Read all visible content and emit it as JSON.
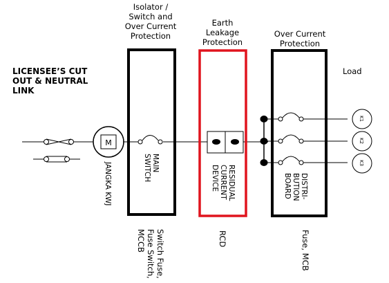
{
  "labels": {
    "licensee": [
      "LICENSEE’S CUT",
      "OUT & NEUTRAL",
      "LINK"
    ],
    "isolator": [
      "Isolator /",
      "Switch and",
      "Over Current",
      "Protection"
    ],
    "earth_leakage": [
      "Earth",
      "Leakage",
      "Protection"
    ],
    "over_current": [
      "Over Current",
      "Protection"
    ],
    "load": "Load"
  },
  "meter": {
    "symbol": "M",
    "label": "JANGKA KWJ"
  },
  "main_switch": [
    "MAIN",
    "SWITCH"
  ],
  "rcd_block": [
    "RESIDUAL",
    "CURRENT",
    "DEVICE"
  ],
  "distribution_board": [
    "DISTRI-",
    "BUTION",
    "BOARD"
  ],
  "bottom": {
    "switch": [
      "Switch Fuse,",
      "Fuse Switch,",
      "MCCB"
    ],
    "rcd": "RCD",
    "db": "Fuse, MCB"
  },
  "loads": [
    "K1",
    "K2",
    "K3"
  ],
  "colors": {
    "line": "#000000",
    "rcd_box": "#e0141e"
  }
}
